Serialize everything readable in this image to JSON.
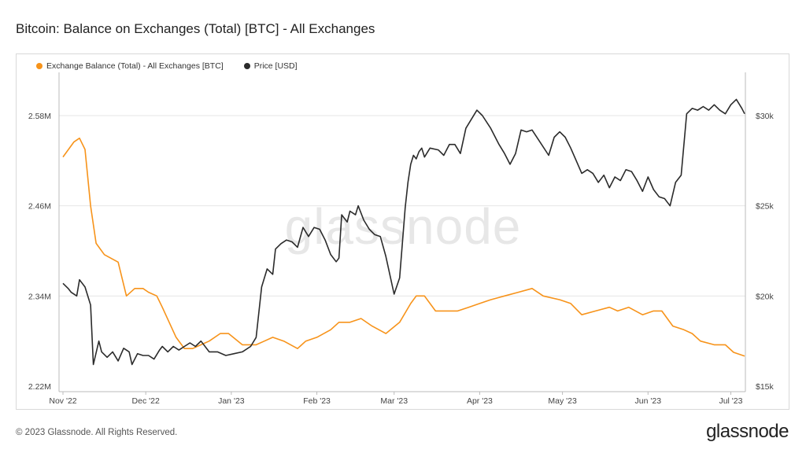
{
  "header": {
    "title": "Bitcoin: Balance on Exchanges (Total) [BTC] - All Exchanges"
  },
  "footer": {
    "copyright": "© 2023 Glassnode. All Rights Reserved.",
    "brand": "glassnode"
  },
  "watermark": "glassnode",
  "colors": {
    "balance": "#f7931a",
    "price": "#2b2b2b",
    "grid": "#e6e6e6",
    "axis": "#bbbbbb"
  },
  "chart_data": {
    "type": "line",
    "title": "Bitcoin: Balance on Exchanges (Total) [BTC] - All Exchanges",
    "x_tick_labels": [
      "Nov '22",
      "Dec '22",
      "Jan '23",
      "Feb '23",
      "Mar '23",
      "Apr '23",
      "May '23",
      "Jun '23",
      "Jul '23"
    ],
    "x_range": [
      0,
      247
    ],
    "x_tick_days": [
      0,
      30,
      61,
      92,
      120,
      151,
      181,
      212,
      242
    ],
    "y_left": {
      "ticks": [
        2.22,
        2.34,
        2.46,
        2.58
      ],
      "tick_labels": [
        "2.22M",
        "2.34M",
        "2.46M",
        "2.58M"
      ],
      "ylim": [
        2.22,
        2.58
      ],
      "unit": "M BTC"
    },
    "y_right": {
      "ticks": [
        15,
        20,
        25,
        30
      ],
      "tick_labels": [
        "$15k",
        "$20k",
        "$25k",
        "$30k"
      ],
      "ylim": [
        15,
        30
      ],
      "unit": "k USD"
    },
    "grid": true,
    "legend": "top-left",
    "series": [
      {
        "name": "Exchange Balance (Total) - All Exchanges [BTC]",
        "axis": "left",
        "x": [
          0,
          4,
          6,
          8,
          10,
          12,
          15,
          20,
          23,
          26,
          29,
          31,
          34,
          36,
          41,
          44,
          47,
          50,
          53,
          57,
          60,
          65,
          70,
          73,
          76,
          80,
          85,
          88,
          92,
          97,
          100,
          104,
          108,
          112,
          117,
          122,
          126,
          128,
          131,
          135,
          139,
          143,
          147,
          151,
          155,
          160,
          165,
          170,
          174,
          180,
          184,
          188,
          193,
          198,
          201,
          205,
          210,
          214,
          217,
          221,
          225,
          228,
          231,
          236,
          240,
          243,
          247
        ],
        "values": [
          2.525,
          2.545,
          2.55,
          2.535,
          2.46,
          2.41,
          2.395,
          2.385,
          2.34,
          2.35,
          2.35,
          2.345,
          2.34,
          2.325,
          2.285,
          2.27,
          2.27,
          2.275,
          2.28,
          2.29,
          2.29,
          2.275,
          2.275,
          2.28,
          2.285,
          2.28,
          2.27,
          2.28,
          2.285,
          2.295,
          2.305,
          2.305,
          2.31,
          2.3,
          2.29,
          2.305,
          2.33,
          2.34,
          2.34,
          2.32,
          2.32,
          2.32,
          2.325,
          2.33,
          2.335,
          2.34,
          2.345,
          2.35,
          2.34,
          2.335,
          2.33,
          2.315,
          2.32,
          2.325,
          2.32,
          2.325,
          2.315,
          2.32,
          2.32,
          2.3,
          2.295,
          2.29,
          2.28,
          2.275,
          2.275,
          2.265,
          2.26
        ]
      },
      {
        "name": "Price [USD]",
        "axis": "right",
        "x": [
          0,
          2,
          3,
          5,
          6,
          8,
          10,
          11,
          13,
          14,
          16,
          18,
          20,
          22,
          24,
          25,
          27,
          29,
          31,
          33,
          35,
          36,
          38,
          40,
          42,
          44,
          46,
          48,
          50,
          53,
          56,
          59,
          62,
          65,
          68,
          70,
          72,
          74,
          76,
          77,
          79,
          81,
          83,
          85,
          87,
          89,
          91,
          93,
          95,
          97,
          99,
          100,
          101,
          103,
          104,
          106,
          107,
          109,
          111,
          113,
          115,
          117,
          120,
          122,
          124,
          125,
          126,
          127,
          128,
          129,
          130,
          131,
          133,
          136,
          138,
          140,
          142,
          144,
          146,
          148,
          150,
          152,
          155,
          158,
          160,
          162,
          164,
          166,
          168,
          170,
          173,
          176,
          178,
          180,
          182,
          184,
          186,
          188,
          190,
          192,
          194,
          196,
          198,
          200,
          202,
          204,
          206,
          208,
          210,
          212,
          214,
          216,
          218,
          220,
          222,
          224,
          226,
          228,
          230,
          232,
          234,
          236,
          238,
          240,
          242,
          244,
          246,
          247
        ],
        "values": [
          20.7,
          20.4,
          20.2,
          20.0,
          20.9,
          20.5,
          19.5,
          16.2,
          17.5,
          16.9,
          16.6,
          16.9,
          16.4,
          17.1,
          16.9,
          16.2,
          16.8,
          16.7,
          16.7,
          16.5,
          17.0,
          17.2,
          16.9,
          17.2,
          17.0,
          17.2,
          17.4,
          17.2,
          17.5,
          16.9,
          16.9,
          16.7,
          16.8,
          16.9,
          17.2,
          17.7,
          20.5,
          21.5,
          21.2,
          22.6,
          22.9,
          23.1,
          23.0,
          22.7,
          23.8,
          23.3,
          23.8,
          23.7,
          23.1,
          22.3,
          21.9,
          22.1,
          24.5,
          24.1,
          24.7,
          24.5,
          25.0,
          24.2,
          23.7,
          23.4,
          23.3,
          22.2,
          20.1,
          21.0,
          24.9,
          26.3,
          27.3,
          27.8,
          27.6,
          28.0,
          28.2,
          27.7,
          28.2,
          28.1,
          27.8,
          28.4,
          28.4,
          27.9,
          29.3,
          29.8,
          30.3,
          30.0,
          29.3,
          28.4,
          27.9,
          27.3,
          27.9,
          29.2,
          29.1,
          29.2,
          28.5,
          27.8,
          28.8,
          29.1,
          28.8,
          28.2,
          27.5,
          26.8,
          27.0,
          26.8,
          26.3,
          26.7,
          26.0,
          26.6,
          26.4,
          27.0,
          26.9,
          26.4,
          25.8,
          26.6,
          25.9,
          25.5,
          25.4,
          25.0,
          26.3,
          26.7,
          30.1,
          30.4,
          30.3,
          30.5,
          30.3,
          30.6,
          30.3,
          30.1,
          30.6,
          30.9,
          30.4,
          30.1
        ]
      }
    ]
  }
}
